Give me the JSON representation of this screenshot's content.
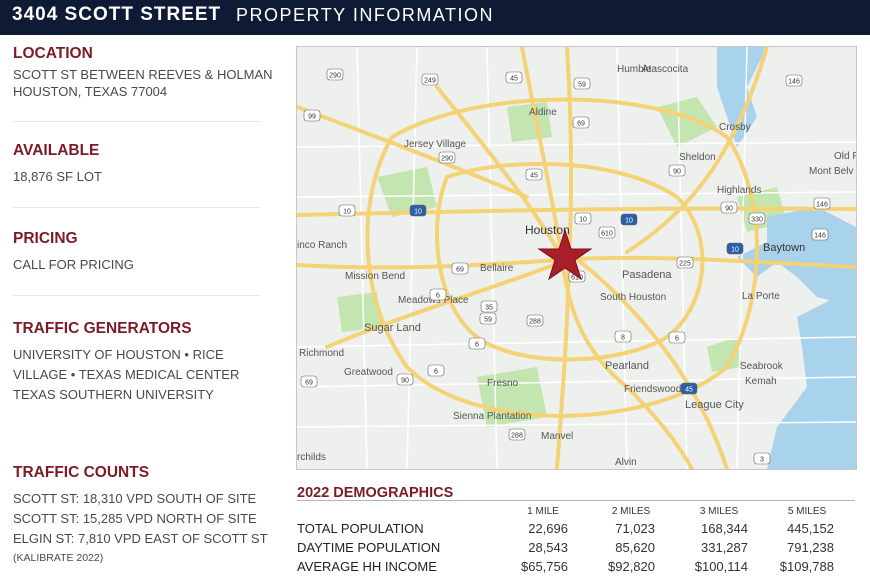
{
  "header": {
    "address": "3404 SCOTT STREET",
    "subtitle": "PROPERTY INFORMATION"
  },
  "location": {
    "title": "LOCATION",
    "line1": "SCOTT ST BETWEEN REEVES & HOLMAN",
    "line2": "HOUSTON, TEXAS 77004"
  },
  "available": {
    "title": "AVAILABLE",
    "line1": "18,876 SF LOT"
  },
  "pricing": {
    "title": "PRICING",
    "line1": "CALL FOR PRICING"
  },
  "traffic_generators": {
    "title": "TRAFFIC GENERATORS",
    "line1": "UNIVERSITY OF HOUSTON  •  RICE",
    "line2": "VILLAGE  •  TEXAS MEDICAL CENTER",
    "line3": "TEXAS SOUTHERN UNIVERSITY"
  },
  "traffic_counts": {
    "title": "TRAFFIC COUNTS",
    "line1": "SCOTT ST: 18,310 VPD SOUTH OF SITE",
    "line2": "SCOTT ST: 15,285 VPD NORTH OF SITE",
    "line3": "ELGIN ST: 7,810 VPD EAST OF SCOTT ST",
    "note": "(KALIBRATE 2022)"
  },
  "map": {
    "places": [
      "Humble",
      "Atascocita",
      "Aldine",
      "Jersey Village",
      "Crosby",
      "Sheldon",
      "Highlands",
      "Houston",
      "Baytown",
      "Mission Bend",
      "Bellaire",
      "Pasadena",
      "Meadows Place",
      "South Houston",
      "La Porte",
      "Sugar Land",
      "Richmond",
      "Greatwood",
      "Pearland",
      "Seabrook",
      "Kemah",
      "Fresno",
      "Friendswood",
      "League City",
      "Sienna Plantation",
      "Manvel",
      "Alvin",
      "Old F",
      "Mont Belv",
      "inco Ranch",
      "rchilds"
    ],
    "shields": [
      "290",
      "249",
      "45",
      "59",
      "146",
      "99",
      "69",
      "290",
      "45",
      "90",
      "10",
      "10",
      "10",
      "10",
      "610",
      "330",
      "146",
      "90",
      "69",
      "10",
      "610",
      "225",
      "146",
      "6",
      "288",
      "6",
      "59",
      "8",
      "6",
      "45",
      "3",
      "288",
      "6",
      "35",
      "69",
      "90"
    ],
    "colors": {
      "star": "#a81e2a",
      "highway": "#f4d276",
      "water": "#a9d2ec",
      "park": "#c3e5b0"
    }
  },
  "demographics": {
    "title": "2022 DEMOGRAPHICS",
    "columns": [
      "1 MILE",
      "2 MILES",
      "3 MILES",
      "5 MILES"
    ],
    "rows": [
      {
        "label": "TOTAL POPULATION",
        "values": [
          "22,696",
          "71,023",
          "168,344",
          "445,152"
        ]
      },
      {
        "label": "DAYTIME POPULATION",
        "values": [
          "28,543",
          "85,620",
          "331,287",
          "791,238"
        ]
      },
      {
        "label": "AVERAGE HH INCOME",
        "values": [
          "$65,756",
          "$92,820",
          "$100,114",
          "$109,788"
        ]
      }
    ]
  }
}
